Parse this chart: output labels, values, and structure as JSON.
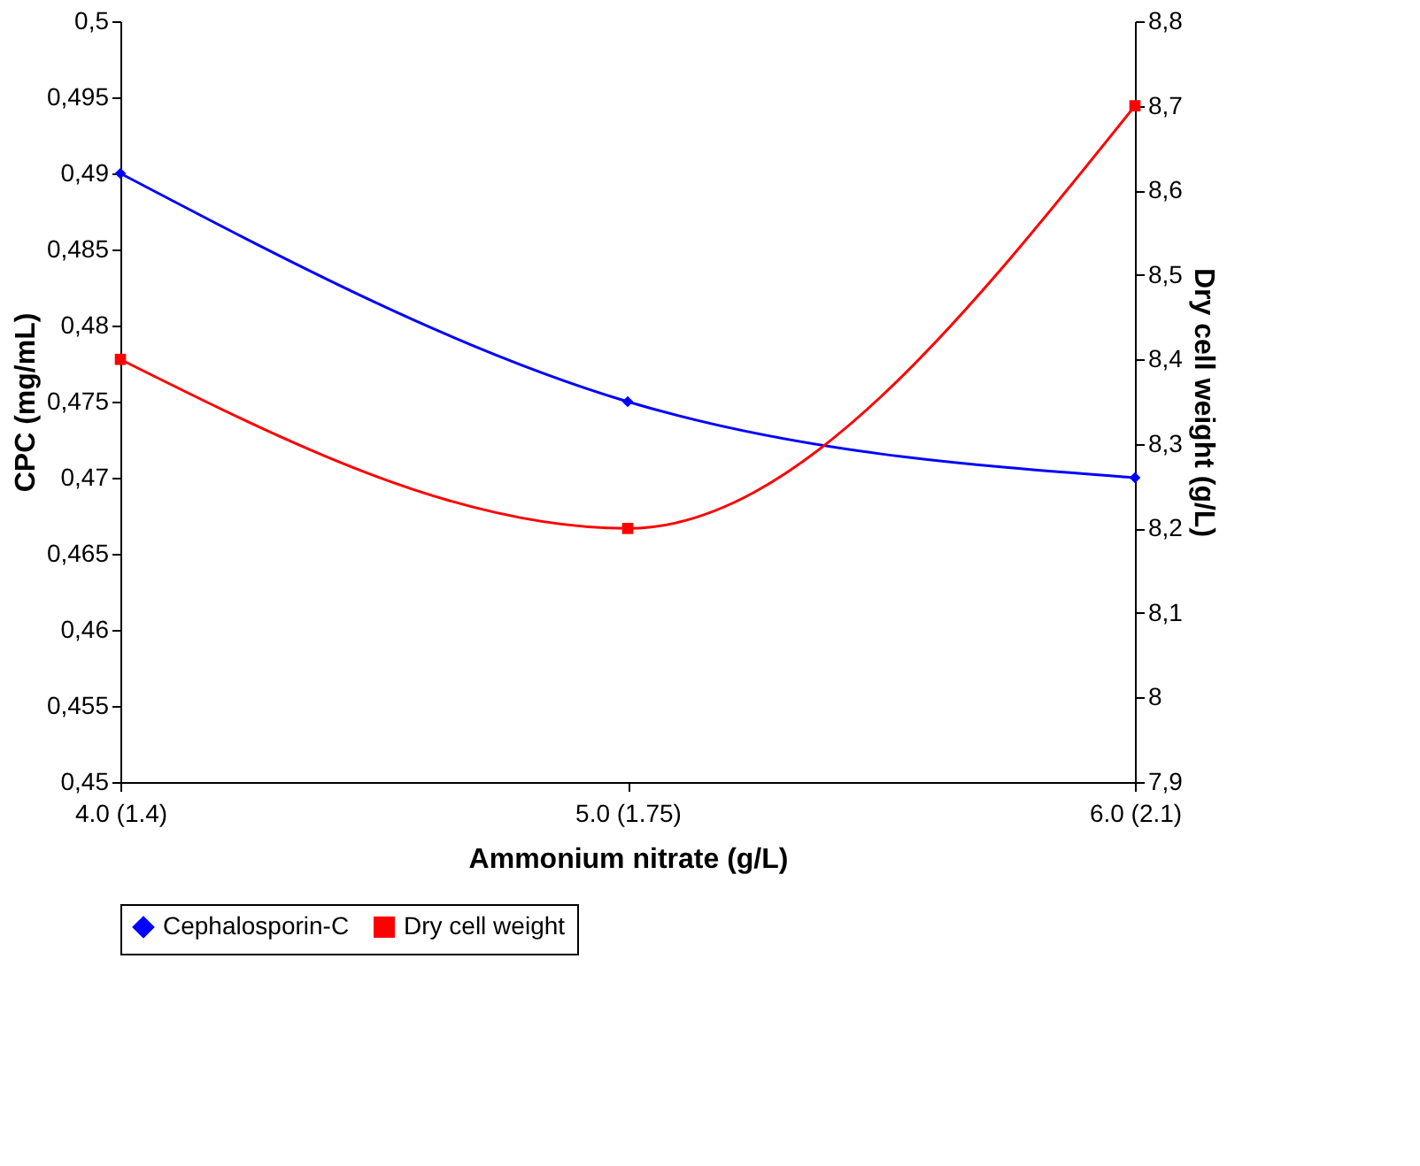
{
  "chart_data": {
    "type": "line",
    "xlabel": "Ammonium nitrate (g/L)",
    "ylabel": "CPC (mg/mL)",
    "y2label": "Dry cell weight (g/L)",
    "categories": [
      "4.0 (1.4)",
      "5.0 (1.75)",
      "6.0 (2.1)"
    ],
    "series": [
      {
        "name": "Cephalosporin-C",
        "color": "#0000ff",
        "values": [
          0.49,
          0.475,
          0.47
        ],
        "marker": "diamond"
      },
      {
        "name": "Dry cell weight",
        "color": "#ff0000",
        "values": [
          8.4,
          8.2,
          8.7
        ],
        "marker": "square",
        "axis": "y2"
      }
    ],
    "ylim": [
      0.45,
      0.5
    ],
    "yticks": [
      {
        "value": 0.45,
        "label": "0,45"
      },
      {
        "value": 0.455,
        "label": "0,455"
      },
      {
        "value": 0.46,
        "label": "0,46"
      },
      {
        "value": 0.465,
        "label": "0,465"
      },
      {
        "value": 0.47,
        "label": "0,47"
      },
      {
        "value": 0.475,
        "label": "0,475"
      },
      {
        "value": 0.48,
        "label": "0,48"
      },
      {
        "value": 0.485,
        "label": "0,485"
      },
      {
        "value": 0.49,
        "label": "0,49"
      },
      {
        "value": 0.495,
        "label": "0,495"
      },
      {
        "value": 0.5,
        "label": "0,5"
      }
    ],
    "y2lim": [
      7.9,
      8.8
    ],
    "y2ticks": [
      {
        "value": 7.9,
        "label": "7,9"
      },
      {
        "value": 8,
        "label": "8"
      },
      {
        "value": 8.1,
        "label": "8,1"
      },
      {
        "value": 8.2,
        "label": "8,2"
      },
      {
        "value": 8.3,
        "label": "8,3"
      },
      {
        "value": 8.4,
        "label": "8,4"
      },
      {
        "value": 8.5,
        "label": "8,5"
      },
      {
        "value": 8.6,
        "label": "8,6"
      },
      {
        "value": 8.7,
        "label": "8,7"
      },
      {
        "value": 8.8,
        "label": "8,8"
      }
    ],
    "grid": false,
    "legend": "bottom",
    "line_style": "solid"
  }
}
